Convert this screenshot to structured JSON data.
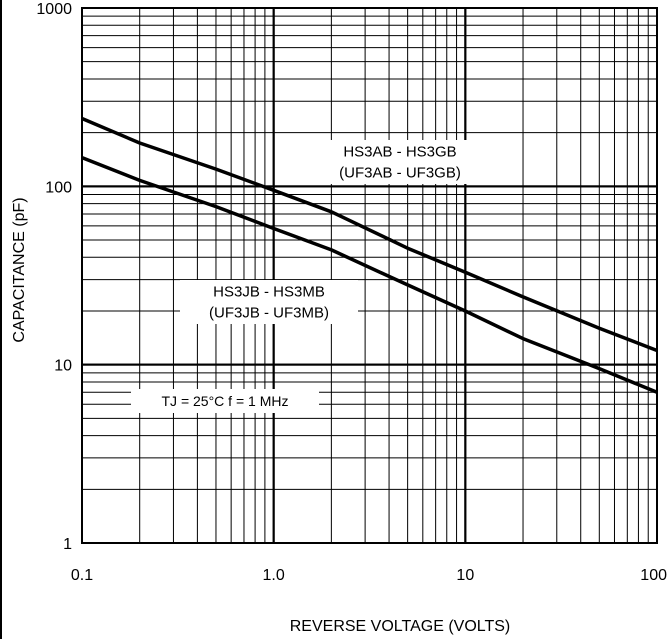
{
  "chart_data": {
    "type": "line",
    "xscale": "log",
    "yscale": "log",
    "xlim": [
      0.1,
      100
    ],
    "ylim": [
      1,
      1000
    ],
    "grid": true,
    "xlabel": "REVERSE VOLTAGE (VOLTS)",
    "ylabel": "CAPACITANCE (pF)",
    "x_ticks": [
      "0.1",
      "1.0",
      "10",
      "100"
    ],
    "y_ticks": [
      "1",
      "10",
      "100",
      "1000"
    ],
    "series": [
      {
        "name_lines": [
          "HS3AB - HS3GB",
          "(UF3AB - UF3GB)"
        ],
        "x": [
          0.1,
          0.2,
          0.5,
          1.0,
          2.0,
          5.0,
          10,
          20,
          50,
          100
        ],
        "y": [
          240,
          175,
          125,
          95,
          72,
          45,
          33,
          24,
          16,
          12
        ]
      },
      {
        "name_lines": [
          "HS3JB - HS3MB",
          "(UF3JB - UF3MB)"
        ],
        "x": [
          0.1,
          0.2,
          0.5,
          1.0,
          2.0,
          5.0,
          10,
          20,
          50,
          100
        ],
        "y": [
          145,
          108,
          77,
          58,
          44,
          28,
          20,
          14,
          9.5,
          7
        ]
      }
    ],
    "annotation": "TJ = 25°C  f = 1 MHz"
  }
}
